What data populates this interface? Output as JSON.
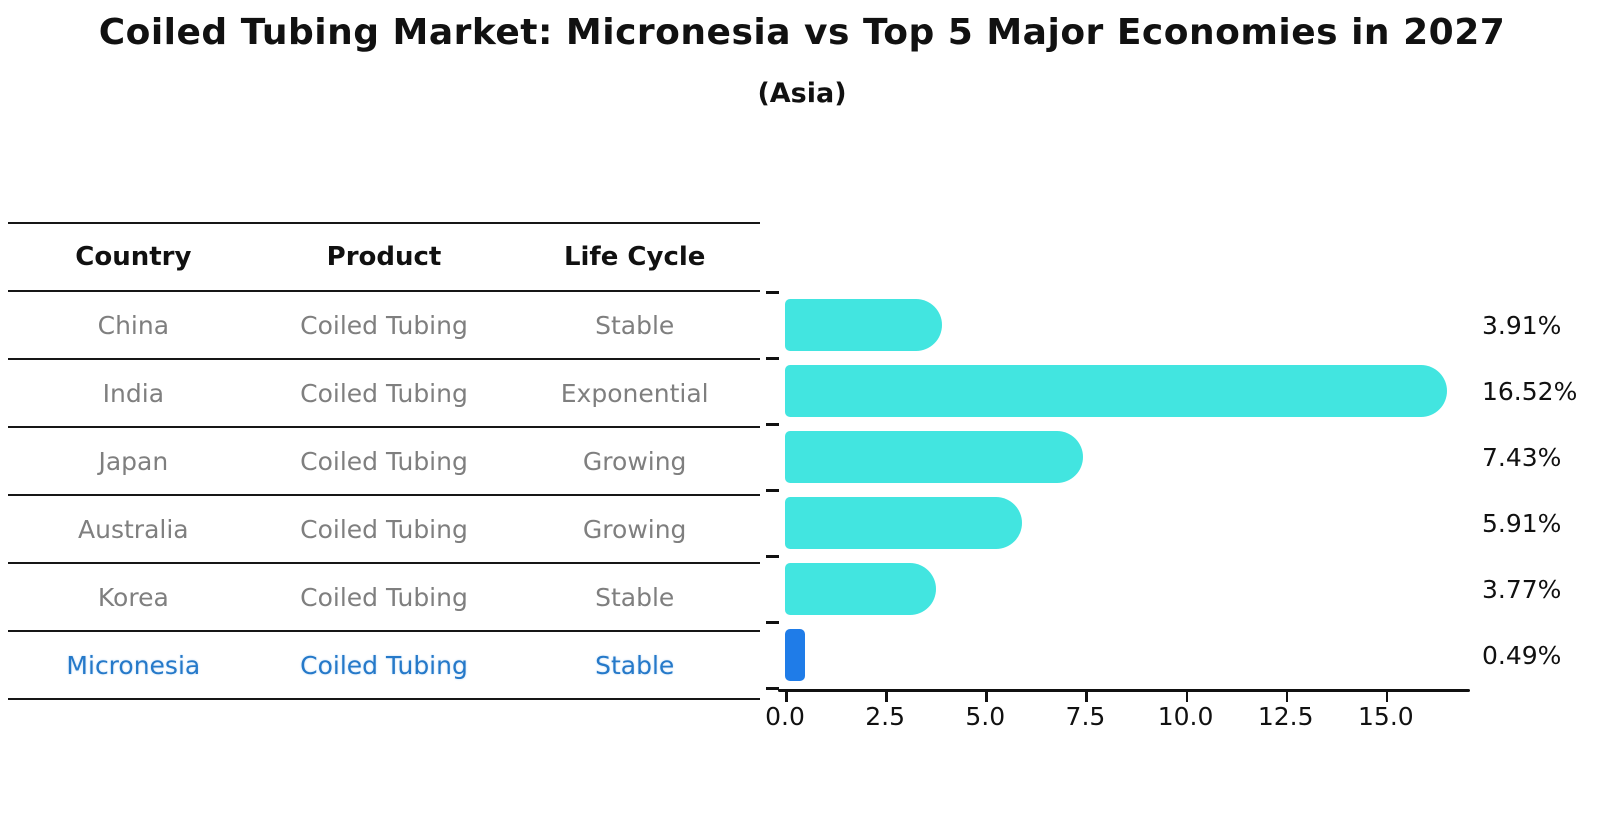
{
  "title": "Coiled Tubing Market: Micronesia vs Top 5 Major Economies in 2027",
  "subtitle": "(Asia)",
  "table": {
    "headers": [
      "Country",
      "Product",
      "Life Cycle"
    ],
    "rows": [
      {
        "country": "China",
        "product": "Coiled Tubing",
        "life_cycle": "Stable",
        "highlighted": false
      },
      {
        "country": "India",
        "product": "Coiled Tubing",
        "life_cycle": "Exponential",
        "highlighted": false
      },
      {
        "country": "Japan",
        "product": "Coiled Tubing",
        "life_cycle": "Growing",
        "highlighted": false
      },
      {
        "country": "Australia",
        "product": "Coiled Tubing",
        "life_cycle": "Growing",
        "highlighted": false
      },
      {
        "country": "Korea",
        "product": "Coiled Tubing",
        "life_cycle": "Stable",
        "highlighted": false
      },
      {
        "country": "Micronesia",
        "product": "Coiled Tubing",
        "life_cycle": "Stable",
        "highlighted": true
      }
    ]
  },
  "chart_data": {
    "type": "bar",
    "orientation": "horizontal",
    "categories": [
      "China",
      "India",
      "Japan",
      "Australia",
      "Korea",
      "Micronesia"
    ],
    "values": [
      3.91,
      16.52,
      7.43,
      5.91,
      3.77,
      0.49
    ],
    "value_labels": [
      "3.91%",
      "16.52%",
      "7.43%",
      "5.91%",
      "3.77%",
      "0.49%"
    ],
    "title": "Coiled Tubing Market: Micronesia vs Top 5 Major Economies in 2027",
    "subtitle": "(Asia)",
    "xlabel": "",
    "ylabel": "",
    "xlim": [
      0,
      17.1
    ],
    "x_ticks": [
      0.0,
      2.5,
      5.0,
      7.5,
      10.0,
      12.5,
      15.0
    ],
    "x_tick_labels": [
      "0.0",
      "2.5",
      "5.0",
      "7.5",
      "10.0",
      "12.5",
      "15.0"
    ],
    "grid": false,
    "legend": false,
    "bar_color": "#42e5e0",
    "highlight_color": "#1f7ce8",
    "highlight_index": 5
  },
  "colors": {
    "background": "#ffffff",
    "text_primary": "#111111",
    "text_muted": "#7f7f7f",
    "highlight_text": "#2579c9",
    "bar": "#42e5e0",
    "highlight_bar": "#1f7ce8"
  }
}
